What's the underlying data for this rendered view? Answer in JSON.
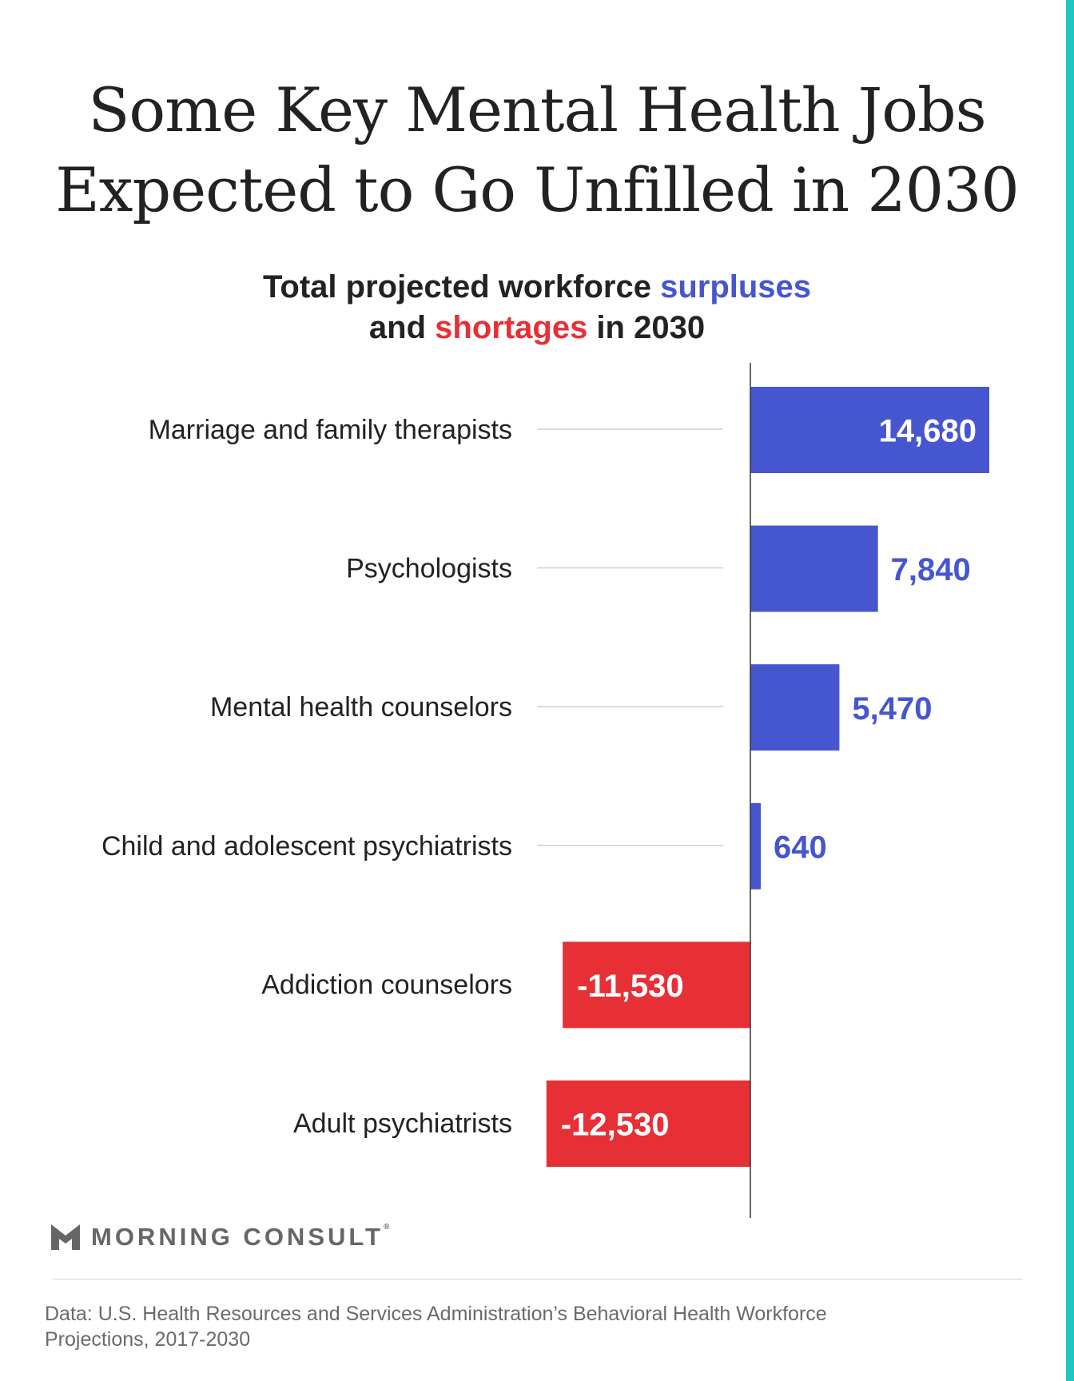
{
  "title_lines": [
    "Some Key Mental Health Jobs",
    "Expected to Go Unfilled in 2030"
  ],
  "subtitle": {
    "line1_prefix": "Total projected workforce ",
    "line1_highlight": "surpluses",
    "line2_prefix": "and ",
    "line2_highlight": "shortages",
    "line2_suffix": " in 2030"
  },
  "colors": {
    "surplus": "#4656cf",
    "shortage": "#e63036",
    "text": "#222222",
    "accent_strip": "#1fc7c4",
    "muted": "#666666"
  },
  "chart_data": {
    "type": "bar",
    "orientation": "horizontal",
    "categories": [
      "Marriage and family therapists",
      "Psychologists",
      "Mental health counselors",
      "Child and adolescent psychiatrists",
      "Addiction counselors",
      "Adult psychiatrists"
    ],
    "values": [
      14680,
      7840,
      5470,
      640,
      -11530,
      -12530
    ],
    "value_labels": [
      "14,680",
      "7,840",
      "5,470",
      "640",
      "-11,530",
      "-12,530"
    ],
    "grid": false,
    "legend": "none"
  },
  "brand": {
    "name": "MORNING CONSULT",
    "reg_mark": "®"
  },
  "source_lines": [
    "Data: U.S. Health Resources and Services Administration’s Behavioral Health Workforce",
    "Projections, 2017-2030"
  ]
}
